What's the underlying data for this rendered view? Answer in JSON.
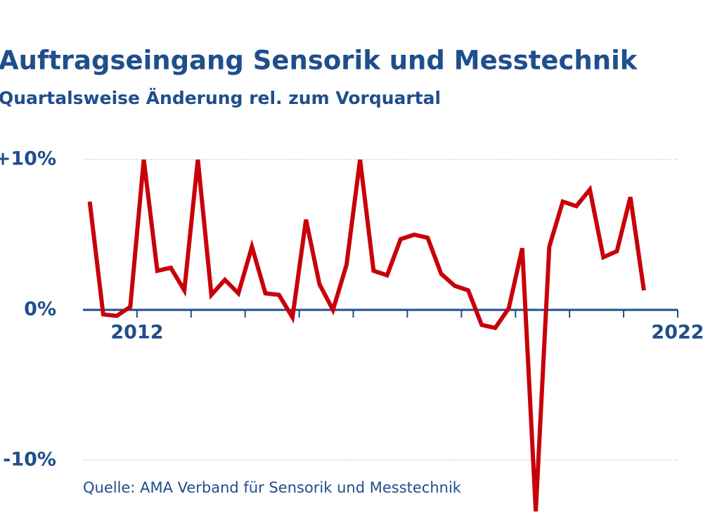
{
  "chart_data": {
    "type": "line",
    "title": "Auftragseingang Sensorik und Messtechnik",
    "subtitle": "Quartalsweise Änderung rel. zum Vorquartal",
    "source": "Quelle: AMA Verband für Sensorik und Messtechnik",
    "x": [
      2011.125,
      2011.375,
      2011.625,
      2011.875,
      2012.125,
      2012.375,
      2012.625,
      2012.875,
      2013.125,
      2013.375,
      2013.625,
      2013.875,
      2014.125,
      2014.375,
      2014.625,
      2014.875,
      2015.125,
      2015.375,
      2015.625,
      2015.875,
      2016.125,
      2016.375,
      2016.625,
      2016.875,
      2017.125,
      2017.375,
      2017.625,
      2017.875,
      2018.125,
      2018.375,
      2018.625,
      2018.875,
      2019.125,
      2019.375,
      2019.625,
      2019.875,
      2020.125,
      2020.375,
      2020.625,
      2020.875,
      2021.125,
      2021.375
    ],
    "values": [
      7.2,
      -0.3,
      -0.4,
      0.2,
      10,
      2.6,
      2.8,
      1.3,
      10,
      1.0,
      2.0,
      1.1,
      4.2,
      1.1,
      1.0,
      -0.5,
      6.0,
      1.7,
      0.0,
      3.0,
      10,
      2.6,
      2.3,
      4.7,
      5.0,
      4.8,
      2.4,
      1.6,
      1.3,
      -1.0,
      -1.2,
      0.1,
      4.1,
      -13.4,
      4.2,
      7.2,
      6.9,
      8.0,
      3.5,
      3.9,
      7.5,
      1.3
    ],
    "color": "#c8000a",
    "xlim": [
      2011,
      2022
    ],
    "xticks": [
      2012,
      2022
    ],
    "minor_xticks": [
      2013,
      2014,
      2015,
      2016,
      2017,
      2018,
      2019,
      2020,
      2021
    ],
    "ylim": [
      -14,
      10
    ],
    "yticks": [
      {
        "value": -10,
        "label": "-10%"
      },
      {
        "value": 0,
        "label": "0%"
      },
      {
        "value": 10,
        "label": "+10%"
      }
    ],
    "grid": true
  }
}
